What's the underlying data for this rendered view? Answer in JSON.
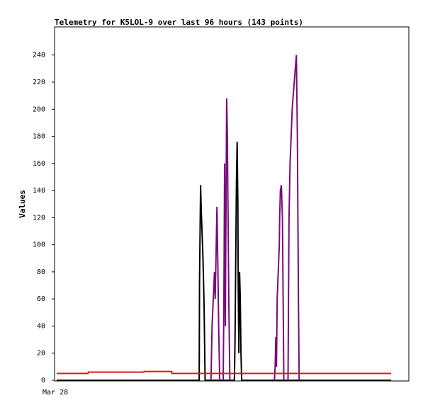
{
  "chart_data": {
    "type": "line",
    "title": "Telemetry for K5LOL-9 over last 96 hours (143 points)",
    "xlabel": "",
    "ylabel": "Values",
    "x_tick_labels": [
      "Mar 28"
    ],
    "ylim": [
      0,
      255
    ],
    "y_ticks": [
      0,
      20,
      40,
      60,
      80,
      100,
      120,
      140,
      160,
      180,
      200,
      220,
      240
    ],
    "grid": false,
    "legend": "none",
    "x": [
      0,
      40.9,
      41.0,
      41.3,
      41.5,
      42.0,
      42.3,
      42.6,
      42.9,
      43.0,
      44.3,
      44.6,
      45.3,
      45.5,
      45.8,
      46.0,
      46.1,
      46.3,
      46.5,
      46.8,
      47.2,
      47.8,
      48.0,
      48.2,
      48.4,
      48.6,
      48.8,
      49.0,
      49.2,
      49.4,
      49.7,
      49.9,
      51.0,
      51.2,
      51.4,
      51.6,
      51.8,
      52.0,
      52.1,
      52.3,
      52.5,
      52.7,
      52.9,
      53.1,
      53.3,
      53.5,
      53.8,
      54.0,
      62.5,
      62.7,
      62.9,
      63.1,
      63.3,
      63.6,
      63.9,
      64.0,
      64.2,
      64.5,
      64.8,
      65.0,
      65.2,
      66.4,
      66.7,
      67.0,
      67.3,
      67.6,
      67.9,
      68.2,
      68.5,
      68.8,
      69.1,
      69.4,
      69.6,
      73.6,
      77.2,
      96
    ],
    "series": [
      {
        "color": "#000000",
        "values": [
          0,
          0,
          72,
          144,
          126,
          90,
          56,
          0,
          0,
          0,
          0,
          0,
          0,
          0,
          0,
          0,
          0,
          0,
          0,
          0,
          0,
          0,
          0,
          0,
          0,
          0,
          0,
          0,
          0,
          0,
          0,
          0,
          0,
          30,
          88,
          146,
          176,
          130,
          72,
          20,
          80,
          60,
          20,
          0,
          0,
          0,
          0,
          0,
          0,
          0,
          0,
          0,
          0,
          0,
          0,
          0,
          0,
          0,
          0,
          0,
          0,
          0,
          0,
          0,
          0,
          0,
          0,
          0,
          0,
          0,
          0,
          0,
          0,
          0,
          0,
          0
        ]
      },
      {
        "color": "#7a0b7a",
        "values": [
          0,
          0,
          0,
          0,
          0,
          0,
          0,
          0,
          0,
          0,
          0,
          0,
          0,
          0,
          0,
          0,
          0,
          0,
          0,
          0,
          0,
          0,
          0,
          0,
          0,
          0,
          0,
          0,
          0,
          0,
          0,
          0,
          0,
          0,
          0,
          0,
          0,
          0,
          0,
          0,
          0,
          0,
          0,
          0,
          0,
          0,
          0,
          0,
          0,
          0,
          0,
          0,
          0,
          0,
          0,
          0,
          0,
          0,
          0,
          0,
          0,
          0,
          0,
          0,
          0,
          0,
          0,
          0,
          0,
          0,
          0,
          0,
          0,
          0,
          0,
          0
        ]
      },
      {
        "color": "#d81b1b",
        "values": [
          5,
          5,
          5,
          5,
          5,
          5,
          5,
          5,
          5,
          5,
          5,
          5,
          5,
          5,
          5,
          5,
          5,
          5,
          5,
          5,
          5,
          5,
          5,
          5,
          5,
          5,
          5,
          5,
          5,
          5,
          5,
          5,
          5,
          5,
          5,
          5,
          5,
          5,
          5,
          5,
          5,
          5,
          5,
          5,
          5,
          5,
          5,
          5,
          5,
          5,
          5,
          5,
          5,
          5,
          5,
          5,
          5,
          5,
          5,
          5,
          5,
          5,
          5,
          5,
          5,
          5,
          5,
          5,
          5,
          5,
          5,
          5,
          5,
          5,
          5,
          5
        ]
      }
    ],
    "purple_spikes": [
      {
        "x": [
          44.3,
          44.6,
          45.3,
          45.5,
          45.8,
          46.0,
          46.1,
          46.3,
          46.5,
          46.8
        ],
        "values": [
          0,
          40,
          80,
          60,
          100,
          128,
          110,
          80,
          40,
          0
        ]
      },
      {
        "x": [
          47.8,
          48.0,
          48.2,
          48.4,
          48.6,
          48.8,
          49.0,
          49.2,
          49.4,
          49.7
        ],
        "values": [
          0,
          60,
          160,
          40,
          120,
          208,
          180,
          120,
          60,
          0
        ]
      },
      {
        "x": [
          62.5,
          62.7,
          62.9,
          63.1,
          63.3,
          63.6,
          63.9,
          64.0,
          64.2,
          64.5,
          64.8,
          65.0,
          65.2
        ],
        "values": [
          0,
          10,
          32,
          10,
          60,
          80,
          100,
          120,
          140,
          144,
          120,
          60,
          0
        ]
      },
      {
        "x": [
          66.4,
          66.7,
          67.0,
          67.3,
          67.6,
          67.9,
          68.2,
          68.5,
          68.8,
          69.1,
          69.4,
          69.6
        ],
        "values": [
          0,
          120,
          160,
          180,
          200,
          210,
          220,
          230,
          240,
          180,
          60,
          0
        ]
      }
    ],
    "red_steps": {
      "x": [
        0,
        9,
        9.1,
        25,
        25.1,
        33,
        33.1,
        96
      ],
      "values": [
        5,
        5,
        6,
        6,
        6.5,
        6.5,
        5,
        5
      ]
    }
  }
}
